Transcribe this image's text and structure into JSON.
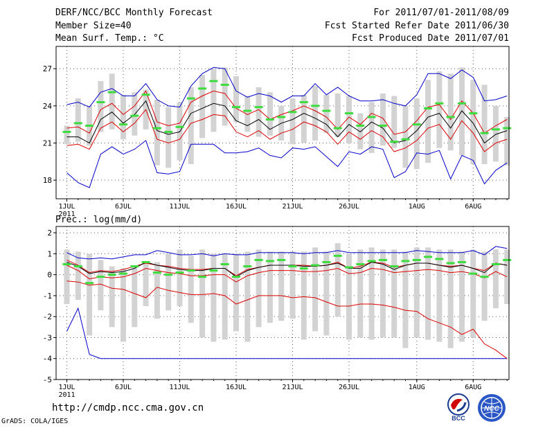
{
  "header": {
    "title": "DERF/NCC/BCC Monthly Forecast",
    "member_size": "Member Size=40",
    "variable_temp": "Mean Surf. Temp.: °C",
    "for_period": "For 2011/07/01-2011/08/09",
    "started_refer": "Fcst Started Refer Date 2011/06/30",
    "produced": "Fcst Produced Date 2011/07/01"
  },
  "footer": {
    "url": "http://cmdp.ncc.cma.gov.cn",
    "grads": "GrADS: COLA/IGES",
    "logo_bcc": "BCC",
    "logo_ncc": "NCC"
  },
  "colors": {
    "box": "#d3d3d3",
    "median": "#3cdc3c",
    "mean": "#000000",
    "std_band": "#dd0000",
    "envelope": "#0000cc",
    "grid": "#555555",
    "frame": "#000000"
  },
  "chart_data": [
    {
      "type": "line",
      "title": "Mean Surf. Temp.: °C",
      "ylim": [
        16.5,
        28.8
      ],
      "yticks": [
        18,
        21,
        24,
        27
      ],
      "ytick_labels": [
        "18",
        "21",
        "24",
        "27"
      ],
      "xticks": [
        1,
        6,
        11,
        16,
        21,
        26,
        32,
        37
      ],
      "xtick_labels": [
        "1JUL",
        "6JUL",
        "11JUL",
        "16JUL",
        "21JUL",
        "26JUL",
        "1AUG",
        "6AUG"
      ],
      "year_label": "2011",
      "days": 40,
      "box_low": [
        20.9,
        21.1,
        20.8,
        21.9,
        22.1,
        21.3,
        21.6,
        22.1,
        19.2,
        19.0,
        19.6,
        19.3,
        21.4,
        21.9,
        22.4,
        22.7,
        21.9,
        21.5,
        21.6,
        21.2,
        20.9,
        21.0,
        21.2,
        21.8,
        21.5,
        21.0,
        20.5,
        20.2,
        20.8,
        20.6,
        19.0,
        18.9,
        19.4,
        20.6,
        20.4,
        20.0,
        19.3,
        19.3,
        19.5,
        19.2
      ],
      "box_high": [
        22.4,
        24.6,
        24.0,
        26.0,
        26.6,
        24.9,
        25.1,
        25.3,
        24.5,
        23.9,
        24.3,
        25.5,
        26.5,
        27.0,
        27.1,
        26.4,
        24.8,
        25.5,
        25.1,
        24.0,
        24.6,
        24.9,
        25.6,
        24.9,
        25.0,
        24.8,
        23.4,
        24.3,
        25.0,
        24.8,
        24.0,
        24.6,
        26.1,
        26.8,
        26.6,
        27.1,
        26.1,
        25.7,
        24.0,
        23.1
      ],
      "median": [
        21.9,
        22.6,
        22.4,
        24.3,
        25.1,
        22.5,
        23.2,
        24.9,
        22.2,
        21.9,
        22.3,
        24.6,
        25.4,
        26.0,
        25.7,
        23.9,
        23.6,
        23.9,
        22.9,
        23.1,
        23.5,
        24.3,
        24.0,
        23.6,
        22.2,
        23.4,
        22.4,
        23.1,
        22.4,
        21.1,
        21.3,
        22.5,
        23.8,
        24.2,
        23.1,
        24.2,
        23.4,
        21.8,
        22.1,
        22.2
      ],
      "mean": [
        21.5,
        21.5,
        21.0,
        22.9,
        23.5,
        22.6,
        23.3,
        24.4,
        22.0,
        21.7,
        21.9,
        23.4,
        23.8,
        24.2,
        24.0,
        22.8,
        22.4,
        22.9,
        22.1,
        22.6,
        22.9,
        23.4,
        23.0,
        22.5,
        21.5,
        22.5,
        21.9,
        22.7,
        22.2,
        21.0,
        21.2,
        22.0,
        23.1,
        23.4,
        22.2,
        23.6,
        22.6,
        21.0,
        21.7,
        22.0
      ],
      "std_upper": [
        22.2,
        22.3,
        21.8,
        23.7,
        24.2,
        23.3,
        24.0,
        25.2,
        22.7,
        22.4,
        22.6,
        24.3,
        24.8,
        25.2,
        25.0,
        23.8,
        23.3,
        23.7,
        22.9,
        23.3,
        23.6,
        24.0,
        23.6,
        23.1,
        22.1,
        23.1,
        22.5,
        23.4,
        23.0,
        21.7,
        21.9,
        22.8,
        23.9,
        24.1,
        22.9,
        24.4,
        23.4,
        21.8,
        22.4,
        22.9
      ],
      "std_lower": [
        20.8,
        20.9,
        20.5,
        22.2,
        22.7,
        21.9,
        22.6,
        23.7,
        21.3,
        21.0,
        21.3,
        22.6,
        22.9,
        23.3,
        23.2,
        21.9,
        21.5,
        22.0,
        21.3,
        21.8,
        22.1,
        22.7,
        22.4,
        21.9,
        20.9,
        21.9,
        21.3,
        22.0,
        21.5,
        20.3,
        20.6,
        21.2,
        22.2,
        22.5,
        21.3,
        22.8,
        21.8,
        20.3,
        21.0,
        21.3
      ],
      "env_upper": [
        24.1,
        24.3,
        23.9,
        25.1,
        25.4,
        24.8,
        24.8,
        25.8,
        24.5,
        24.0,
        23.9,
        25.6,
        26.6,
        27.1,
        27.0,
        25.2,
        24.7,
        25.0,
        24.8,
        24.3,
        24.8,
        24.8,
        25.8,
        24.9,
        25.5,
        24.8,
        24.4,
        24.4,
        24.5,
        24.2,
        24.0,
        24.9,
        26.6,
        26.6,
        26.2,
        26.9,
        26.3,
        24.4,
        24.5,
        24.8
      ],
      "env_lower": [
        18.6,
        17.8,
        17.4,
        20.1,
        20.7,
        20.1,
        20.5,
        21.2,
        18.6,
        18.5,
        18.7,
        20.9,
        20.9,
        20.9,
        20.2,
        20.2,
        20.3,
        20.6,
        20.0,
        19.8,
        20.6,
        20.5,
        20.7,
        19.9,
        19.1,
        20.3,
        20.1,
        20.7,
        20.5,
        18.2,
        18.7,
        20.2,
        20.1,
        20.4,
        18.1,
        20.0,
        19.6,
        17.7,
        18.8,
        19.4
      ]
    },
    {
      "type": "line",
      "title": "Prec.: log(mm/d)",
      "ylim": [
        -5,
        2.3
      ],
      "yticks": [
        -5,
        -4,
        -3,
        -2,
        -1,
        0,
        1,
        2
      ],
      "ytick_labels": [
        "-5",
        "-4",
        "-3",
        "-2",
        "-1",
        "0",
        "1",
        "2"
      ],
      "xticks": [
        1,
        6,
        11,
        16,
        21,
        26,
        32,
        37
      ],
      "xtick_labels": [
        "1JUL",
        "6JUL",
        "11JUL",
        "16JUL",
        "21JUL",
        "26JUL",
        "1AUG",
        "6AUG"
      ],
      "year_label": "2011",
      "days": 40,
      "box_low": [
        -1.4,
        -1.2,
        -2.9,
        -1.7,
        -2.5,
        -3.2,
        -2.5,
        -1.5,
        -2.1,
        -1.7,
        -1.5,
        -2.3,
        -3.0,
        -3.2,
        -3.1,
        -2.7,
        -3.2,
        -2.5,
        -2.3,
        -2.2,
        -2.1,
        -3.1,
        -2.7,
        -2.9,
        -2.0,
        -3.1,
        -3.0,
        -3.1,
        -3.0,
        -3.0,
        -3.5,
        -3.0,
        -3.1,
        -3.2,
        -3.5,
        -3.2,
        -3.0,
        -2.2,
        -1.6,
        -1.4
      ],
      "box_high": [
        1.2,
        1.1,
        1.0,
        0.7,
        0.4,
        0.3,
        0.4,
        0.6,
        0.6,
        1.0,
        1.2,
        0.9,
        1.2,
        1.0,
        1.0,
        1.0,
        1.1,
        1.2,
        1.1,
        1.1,
        1.1,
        1.1,
        1.3,
        1.1,
        1.5,
        1.0,
        1.2,
        1.3,
        1.2,
        1.2,
        1.1,
        1.3,
        1.3,
        1.2,
        1.2,
        1.1,
        1.2,
        1.1,
        1.2,
        1.2
      ],
      "median": [
        0.5,
        0.4,
        -0.4,
        -0.1,
        0.0,
        0.05,
        0.4,
        0.6,
        0.1,
        0.0,
        0.1,
        0.2,
        -0.1,
        0.2,
        0.5,
        -0.1,
        0.4,
        0.7,
        0.65,
        0.7,
        0.4,
        0.3,
        0.45,
        0.6,
        0.9,
        0.35,
        0.5,
        0.65,
        0.7,
        0.4,
        0.65,
        0.7,
        0.85,
        0.75,
        0.55,
        0.6,
        0.05,
        -0.1,
        0.5,
        0.7
      ],
      "mean": [
        0.6,
        0.4,
        0.05,
        0.15,
        0.1,
        0.15,
        0.3,
        0.6,
        0.45,
        0.35,
        0.25,
        0.2,
        0.2,
        0.3,
        0.3,
        -0.1,
        0.2,
        0.35,
        0.45,
        0.45,
        0.45,
        0.4,
        0.4,
        0.45,
        0.55,
        0.3,
        0.3,
        0.6,
        0.5,
        0.25,
        0.45,
        0.55,
        0.55,
        0.45,
        0.35,
        0.45,
        0.3,
        0.1,
        0.55,
        0.45
      ],
      "std_upper": [
        0.7,
        0.45,
        0.1,
        0.2,
        0.15,
        0.25,
        0.4,
        0.55,
        0.45,
        0.4,
        0.3,
        0.25,
        0.25,
        0.3,
        0.3,
        -0.05,
        0.25,
        0.35,
        0.45,
        0.45,
        0.45,
        0.45,
        0.4,
        0.45,
        0.6,
        0.3,
        0.4,
        0.6,
        0.55,
        0.35,
        0.45,
        0.55,
        0.55,
        0.45,
        0.4,
        0.45,
        0.3,
        0.2,
        0.55,
        0.45
      ],
      "std_lower": [
        0.45,
        0.2,
        -0.2,
        -0.1,
        -0.15,
        -0.1,
        0.05,
        0.3,
        0.2,
        0.1,
        0.05,
        -0.05,
        -0.05,
        0.0,
        0.0,
        -0.35,
        -0.05,
        0.1,
        0.2,
        0.2,
        0.2,
        0.15,
        0.15,
        0.2,
        0.3,
        0.05,
        0.1,
        0.3,
        0.25,
        0.1,
        0.15,
        0.2,
        0.25,
        0.2,
        0.1,
        0.15,
        0.05,
        -0.15,
        0.15,
        -0.1
      ],
      "env_upper": [
        1.05,
        0.8,
        0.75,
        0.8,
        0.75,
        0.85,
        0.95,
        0.95,
        1.15,
        1.05,
        0.95,
        0.95,
        1.0,
        0.9,
        1.0,
        0.95,
        0.95,
        1.05,
        1.05,
        1.05,
        1.05,
        1.0,
        1.05,
        1.05,
        1.15,
        1.05,
        1.05,
        1.05,
        1.05,
        1.05,
        1.05,
        1.15,
        1.1,
        1.05,
        1.05,
        1.05,
        1.15,
        0.95,
        1.35,
        1.25
      ],
      "env_lower": [
        -2.7,
        -1.6,
        -3.8,
        -4.0,
        -4.0,
        -4.0,
        -4.0,
        -4.0,
        -4.0,
        -4.0,
        -4.0,
        -4.0,
        -4.0,
        -4.0,
        -4.0,
        -4.0,
        -4.0,
        -4.0,
        -4.0,
        -4.0,
        -4.0,
        -4.0,
        -4.0,
        -4.0,
        -4.0,
        -4.0,
        -4.0,
        -4.0,
        -4.0,
        -4.0,
        -4.0,
        -4.0,
        -4.0,
        -4.0,
        -4.0,
        -4.0,
        -4.0,
        -4.0,
        -4.0,
        -4.0
      ],
      "red_lower": [
        -0.3,
        -0.35,
        -0.5,
        -0.45,
        -0.65,
        -0.7,
        -0.9,
        -1.1,
        -0.6,
        -0.75,
        -0.85,
        -0.95,
        -0.95,
        -0.9,
        -1.0,
        -1.4,
        -1.2,
        -1.0,
        -1.0,
        -1.0,
        -1.1,
        -1.05,
        -1.1,
        -1.3,
        -1.5,
        -1.5,
        -1.4,
        -1.4,
        -1.45,
        -1.55,
        -1.7,
        -1.75,
        -2.1,
        -2.3,
        -2.5,
        -2.85,
        -2.6,
        -3.3,
        -3.6,
        -4.0
      ]
    }
  ]
}
